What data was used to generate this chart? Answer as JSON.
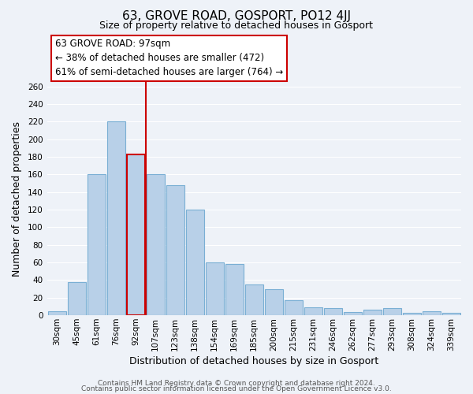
{
  "title": "63, GROVE ROAD, GOSPORT, PO12 4JJ",
  "subtitle": "Size of property relative to detached houses in Gosport",
  "xlabel": "Distribution of detached houses by size in Gosport",
  "ylabel": "Number of detached properties",
  "categories": [
    "30sqm",
    "45sqm",
    "61sqm",
    "76sqm",
    "92sqm",
    "107sqm",
    "123sqm",
    "138sqm",
    "154sqm",
    "169sqm",
    "185sqm",
    "200sqm",
    "215sqm",
    "231sqm",
    "246sqm",
    "262sqm",
    "277sqm",
    "293sqm",
    "308sqm",
    "324sqm",
    "339sqm"
  ],
  "values": [
    5,
    38,
    160,
    220,
    183,
    160,
    148,
    120,
    60,
    58,
    35,
    30,
    17,
    9,
    8,
    4,
    6,
    8,
    3,
    5,
    3
  ],
  "bar_color": "#b8d0e8",
  "bar_edge_color": "#7aafd4",
  "highlight_bar_index": 4,
  "highlight_bar_edge_color": "#cc0000",
  "red_line_color": "#cc0000",
  "annotation_title": "63 GROVE ROAD: 97sqm",
  "annotation_line1": "← 38% of detached houses are smaller (472)",
  "annotation_line2": "61% of semi-detached houses are larger (764) →",
  "annotation_box_color": "#ffffff",
  "annotation_box_edge_color": "#cc0000",
  "ylim": [
    0,
    265
  ],
  "footer1": "Contains HM Land Registry data © Crown copyright and database right 2024.",
  "footer2": "Contains public sector information licensed under the Open Government Licence v3.0.",
  "bg_color": "#eef2f8",
  "grid_color": "#ffffff",
  "title_fontsize": 11,
  "subtitle_fontsize": 9,
  "axis_label_fontsize": 9,
  "tick_fontsize": 7.5,
  "annotation_fontsize": 8.5,
  "footer_fontsize": 6.5
}
